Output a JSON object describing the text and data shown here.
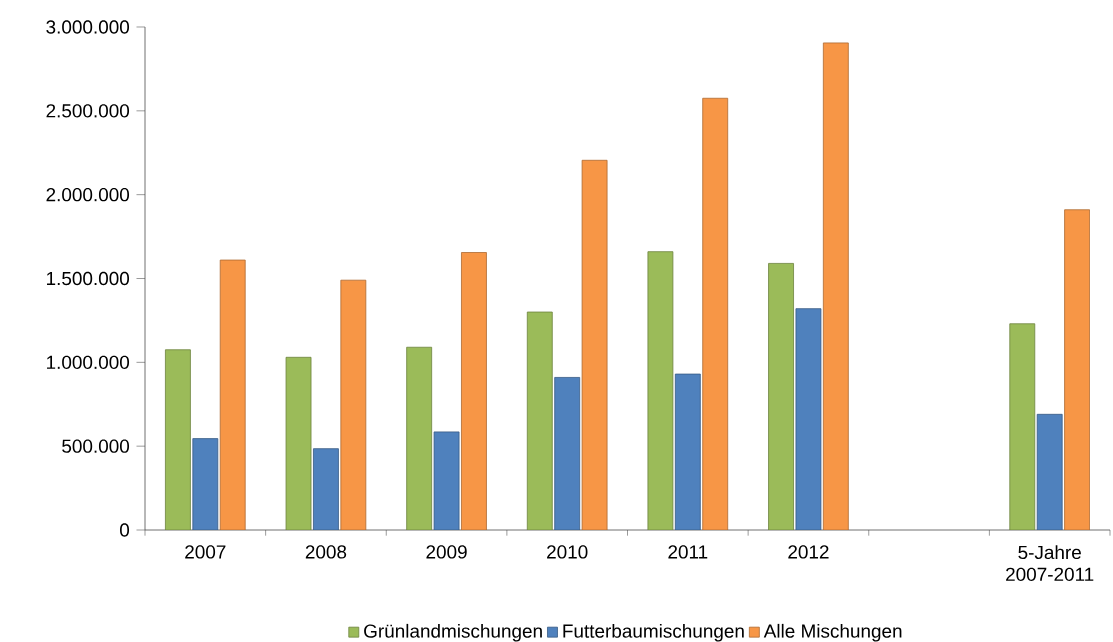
{
  "chart_data": {
    "type": "bar",
    "categories": [
      "2007",
      "2008",
      "2009",
      "2010",
      "2011",
      "2012",
      null,
      "5-Jahre 2007-2011"
    ],
    "series": [
      {
        "name": "Grünlandmischungen",
        "color": "#9bbb59",
        "values": [
          1075000,
          1030000,
          1090000,
          1300000,
          1660000,
          1590000,
          null,
          1230000
        ]
      },
      {
        "name": "Futterbaumischungen",
        "color": "#4f81bd",
        "values": [
          545000,
          485000,
          585000,
          910000,
          930000,
          1320000,
          null,
          690000
        ]
      },
      {
        "name": "Alle Mischungen",
        "color": "#f79646",
        "values": [
          1610000,
          1490000,
          1655000,
          2205000,
          2575000,
          2905000,
          null,
          1910000
        ]
      }
    ],
    "ylim": [
      0,
      3000000
    ],
    "yticks": [
      {
        "value": 0,
        "label": "0"
      },
      {
        "value": 500000,
        "label": "500.000"
      },
      {
        "value": 1000000,
        "label": "1.000.000"
      },
      {
        "value": 1500000,
        "label": "1.500.000"
      },
      {
        "value": 2000000,
        "label": "2.000.000"
      },
      {
        "value": 2500000,
        "label": "2.500.000"
      },
      {
        "value": 3000000,
        "label": "3.000.000"
      }
    ],
    "grid": false,
    "legend": "bottom"
  }
}
